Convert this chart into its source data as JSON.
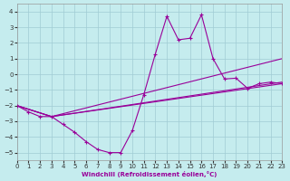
{
  "xlabel": "Windchill (Refroidissement éolien,°C)",
  "bg_color": "#c5ecee",
  "grid_color": "#a0ccd4",
  "line_color": "#990099",
  "xlim": [
    0,
    23
  ],
  "ylim": [
    -5.5,
    4.5
  ],
  "xticks": [
    0,
    1,
    2,
    3,
    4,
    5,
    6,
    7,
    8,
    9,
    10,
    11,
    12,
    13,
    14,
    15,
    16,
    17,
    18,
    19,
    20,
    21,
    22,
    23
  ],
  "yticks": [
    -5,
    -4,
    -3,
    -2,
    -1,
    0,
    1,
    2,
    3,
    4
  ],
  "main_x": [
    0,
    1,
    2,
    3,
    4,
    5,
    6,
    7,
    8,
    9,
    10,
    11,
    12,
    13,
    14,
    15,
    16,
    17,
    18,
    19,
    20,
    21,
    22,
    23
  ],
  "main_y": [
    -2.0,
    -2.4,
    -2.7,
    -2.7,
    -3.2,
    -3.7,
    -4.3,
    -4.8,
    -5.0,
    -5.0,
    -3.6,
    -1.3,
    1.3,
    3.7,
    2.2,
    2.3,
    3.8,
    1.0,
    -0.3,
    -0.25,
    -0.9,
    -0.6,
    -0.5,
    -0.6
  ],
  "smooth_lines": [
    {
      "x": [
        0,
        3,
        23
      ],
      "y": [
        -2.0,
        -2.7,
        1.0
      ]
    },
    {
      "x": [
        0,
        3,
        23
      ],
      "y": [
        -2.0,
        -2.7,
        -0.5
      ]
    },
    {
      "x": [
        0,
        3,
        23
      ],
      "y": [
        -2.0,
        -2.7,
        -0.6
      ]
    }
  ]
}
